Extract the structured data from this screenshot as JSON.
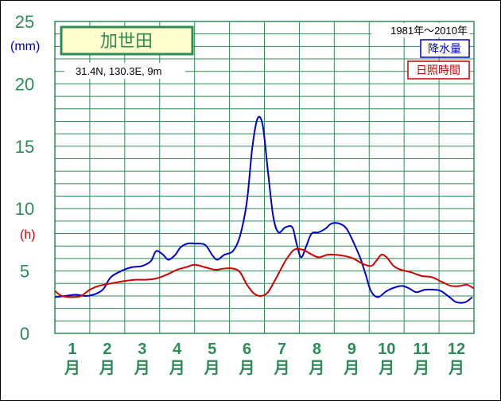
{
  "chart_data": {
    "type": "line",
    "station": "加世田",
    "location": "31.4N,  130.3E,  9m",
    "period": "1981年～2010年",
    "ylim": [
      0,
      25
    ],
    "yticks": [
      "0",
      "5",
      "10",
      "15",
      "20",
      "25"
    ],
    "units": {
      "precip": "(mm)",
      "sun": "(h)"
    },
    "months": [
      {
        "num": "1",
        "suffix": "月"
      },
      {
        "num": "2",
        "suffix": "月"
      },
      {
        "num": "3",
        "suffix": "月"
      },
      {
        "num": "4",
        "suffix": "月"
      },
      {
        "num": "5",
        "suffix": "月"
      },
      {
        "num": "6",
        "suffix": "月"
      },
      {
        "num": "7",
        "suffix": "月"
      },
      {
        "num": "8",
        "suffix": "月"
      },
      {
        "num": "9",
        "suffix": "月"
      },
      {
        "num": "10",
        "suffix": "月"
      },
      {
        "num": "11",
        "suffix": "月"
      },
      {
        "num": "12",
        "suffix": "月"
      }
    ],
    "x_unit": "month (fractional, 0 = start of Jan, 12 = end of Dec)",
    "series": [
      {
        "name": "降水量",
        "color": "#0000cc",
        "points": [
          [
            0.0,
            2.9
          ],
          [
            0.3,
            3.0
          ],
          [
            0.6,
            3.1
          ],
          [
            0.9,
            3.0
          ],
          [
            1.2,
            3.2
          ],
          [
            1.4,
            3.6
          ],
          [
            1.6,
            4.5
          ],
          [
            1.9,
            5.0
          ],
          [
            2.2,
            5.3
          ],
          [
            2.5,
            5.4
          ],
          [
            2.75,
            5.8
          ],
          [
            2.9,
            6.6
          ],
          [
            3.1,
            6.3
          ],
          [
            3.25,
            5.9
          ],
          [
            3.45,
            6.3
          ],
          [
            3.6,
            6.9
          ],
          [
            3.8,
            7.2
          ],
          [
            4.0,
            7.2
          ],
          [
            4.3,
            7.1
          ],
          [
            4.5,
            6.3
          ],
          [
            4.65,
            5.9
          ],
          [
            4.85,
            6.3
          ],
          [
            5.1,
            6.6
          ],
          [
            5.3,
            7.8
          ],
          [
            5.5,
            10.6
          ],
          [
            5.65,
            14.8
          ],
          [
            5.8,
            17.2
          ],
          [
            5.95,
            16.7
          ],
          [
            6.1,
            13.0
          ],
          [
            6.25,
            9.4
          ],
          [
            6.4,
            8.1
          ],
          [
            6.6,
            8.5
          ],
          [
            6.8,
            8.5
          ],
          [
            6.92,
            7.2
          ],
          [
            7.05,
            6.1
          ],
          [
            7.2,
            7.0
          ],
          [
            7.35,
            8.0
          ],
          [
            7.55,
            8.1
          ],
          [
            7.75,
            8.4
          ],
          [
            7.92,
            8.8
          ],
          [
            8.15,
            8.8
          ],
          [
            8.35,
            8.4
          ],
          [
            8.55,
            7.3
          ],
          [
            8.75,
            6.0
          ],
          [
            8.9,
            4.7
          ],
          [
            9.05,
            3.4
          ],
          [
            9.25,
            2.9
          ],
          [
            9.5,
            3.4
          ],
          [
            9.75,
            3.7
          ],
          [
            9.95,
            3.8
          ],
          [
            10.15,
            3.6
          ],
          [
            10.35,
            3.3
          ],
          [
            10.6,
            3.5
          ],
          [
            10.85,
            3.5
          ],
          [
            11.05,
            3.4
          ],
          [
            11.3,
            2.9
          ],
          [
            11.5,
            2.5
          ],
          [
            11.75,
            2.5
          ],
          [
            11.95,
            2.9
          ]
        ]
      },
      {
        "name": "日照時間",
        "color": "#cc0000",
        "points": [
          [
            0.0,
            3.4
          ],
          [
            0.2,
            3.0
          ],
          [
            0.5,
            2.9
          ],
          [
            0.75,
            3.0
          ],
          [
            1.0,
            3.5
          ],
          [
            1.25,
            3.8
          ],
          [
            1.6,
            4.0
          ],
          [
            2.0,
            4.2
          ],
          [
            2.3,
            4.3
          ],
          [
            2.6,
            4.3
          ],
          [
            2.9,
            4.4
          ],
          [
            3.2,
            4.7
          ],
          [
            3.5,
            5.1
          ],
          [
            3.75,
            5.3
          ],
          [
            4.0,
            5.5
          ],
          [
            4.3,
            5.3
          ],
          [
            4.6,
            5.1
          ],
          [
            4.85,
            5.2
          ],
          [
            5.1,
            5.2
          ],
          [
            5.3,
            4.9
          ],
          [
            5.5,
            3.9
          ],
          [
            5.7,
            3.2
          ],
          [
            5.9,
            3.0
          ],
          [
            6.1,
            3.3
          ],
          [
            6.35,
            4.5
          ],
          [
            6.6,
            5.8
          ],
          [
            6.85,
            6.7
          ],
          [
            7.1,
            6.7
          ],
          [
            7.3,
            6.4
          ],
          [
            7.55,
            6.1
          ],
          [
            7.8,
            6.3
          ],
          [
            8.05,
            6.3
          ],
          [
            8.3,
            6.2
          ],
          [
            8.55,
            6.0
          ],
          [
            8.8,
            5.6
          ],
          [
            9.05,
            5.4
          ],
          [
            9.2,
            5.8
          ],
          [
            9.35,
            6.3
          ],
          [
            9.5,
            6.1
          ],
          [
            9.7,
            5.4
          ],
          [
            9.9,
            5.1
          ],
          [
            10.2,
            4.9
          ],
          [
            10.5,
            4.6
          ],
          [
            10.8,
            4.5
          ],
          [
            11.1,
            4.1
          ],
          [
            11.35,
            3.8
          ],
          [
            11.6,
            3.8
          ],
          [
            11.8,
            3.9
          ],
          [
            12.0,
            3.6
          ]
        ]
      }
    ],
    "grid": true,
    "legend_position": "top-right"
  }
}
